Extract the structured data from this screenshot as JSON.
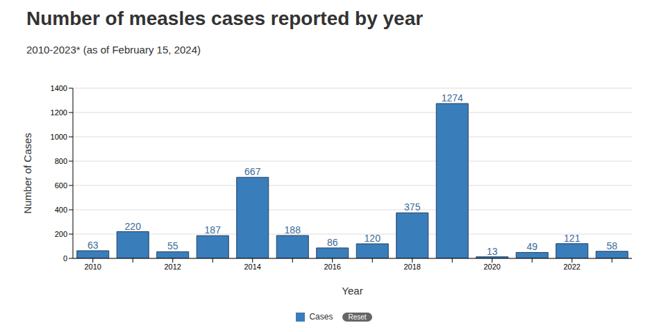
{
  "chart_data": {
    "type": "bar",
    "title": "Number of measles cases reported by year",
    "subtitle": "2010-2023* (as of February 15, 2024)",
    "x_label": "Year",
    "y_label": "Number of Cases",
    "categories": [
      "2010",
      null,
      "2012",
      null,
      "2014",
      null,
      "2016",
      null,
      "2018",
      null,
      "2020",
      null,
      "2022",
      null
    ],
    "series": [
      {
        "name": "Cases",
        "color": "#3a7dbb",
        "values": [
          63,
          220,
          55,
          187,
          667,
          188,
          86,
          120,
          375,
          1274,
          13,
          49,
          121,
          58
        ]
      }
    ],
    "ylim": [
      0,
      1400
    ],
    "yticks": [
      0,
      200,
      400,
      600,
      800,
      1000,
      1200,
      1400
    ],
    "grid": true,
    "data_labels": true,
    "legend": "bottom",
    "annotations": [
      "Reset"
    ]
  }
}
